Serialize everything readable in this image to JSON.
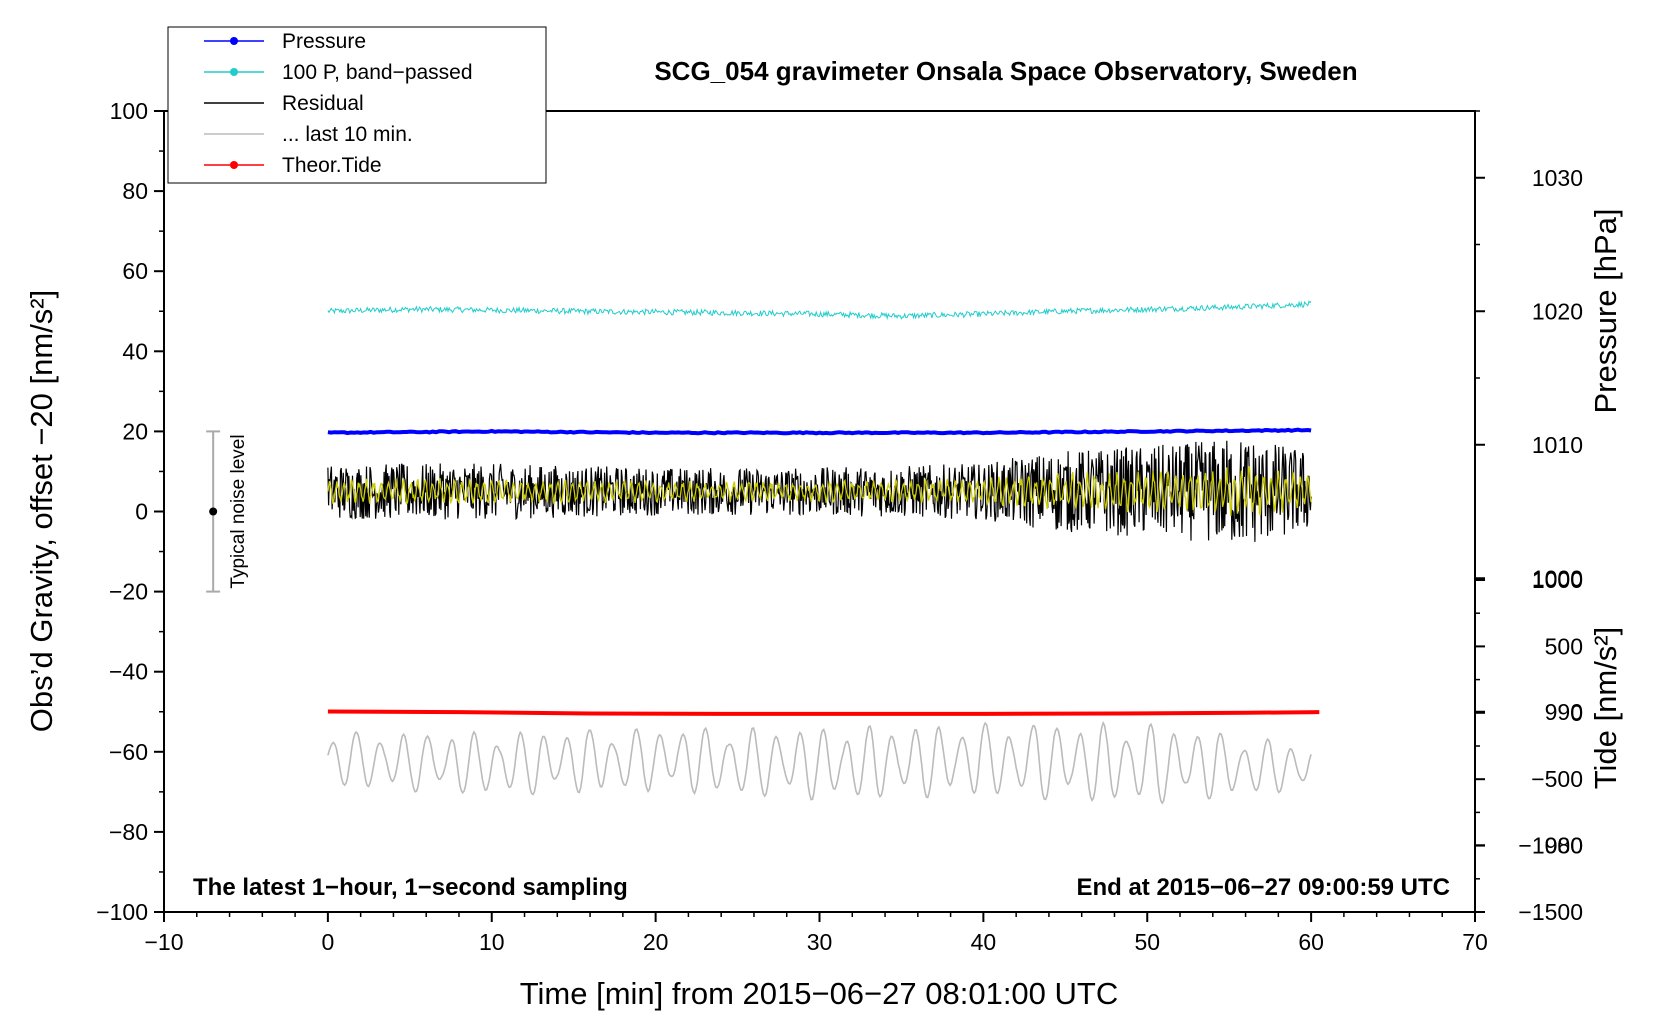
{
  "chart_data": {
    "type": "line",
    "title": "SCG_054 gravimeter Onsala Space Observatory, Sweden",
    "xlabel": "Time [min] from 2015−06−27 08:01:00 UTC",
    "ylabel_left": "Obs’d Gravity, offset −20 [nm/s²]",
    "ylabel_right_top": "Pressure [hPa]",
    "ylabel_right_bottom": "Tide [nm/s²]",
    "xlim": [
      -10,
      70
    ],
    "ylim_left": [
      -100,
      100
    ],
    "ylim_pressure": [
      975,
      1035
    ],
    "ylim_tide": [
      -1500,
      1000
    ],
    "xticks": [
      "−10",
      "0",
      "10",
      "20",
      "30",
      "40",
      "50",
      "60",
      "70"
    ],
    "yticks_left": [
      "100",
      "80",
      "60",
      "40",
      "20",
      "0",
      "−20",
      "−40",
      "−60",
      "−80",
      "−100"
    ],
    "yticks_pressure": [
      "1030",
      "1020",
      "1010",
      "1000",
      "990",
      "980"
    ],
    "yticks_tide": [
      "1000",
      "500",
      "0",
      "−500",
      "−1000",
      "−1500"
    ],
    "legend_position": "top-left",
    "legend": [
      {
        "name": "Pressure",
        "color": "#0000ff",
        "marker": true
      },
      {
        "name": "100 P, band−passed",
        "color": "#22cccc",
        "marker": true
      },
      {
        "name": "Residual",
        "color": "#000000",
        "marker": false
      },
      {
        "name": "... last 10 min.",
        "color": "#bbbbbb",
        "marker": false
      },
      {
        "name": "Theor.Tide",
        "color": "#ff0000",
        "marker": true
      }
    ],
    "series": [
      {
        "name": "Pressure",
        "axis": "pressure",
        "color": "#0000ff",
        "x": [
          0,
          10,
          20,
          30,
          40,
          50,
          60
        ],
        "y": [
          1010.9,
          1011.0,
          1010.9,
          1010.9,
          1010.9,
          1011.0,
          1011.1
        ]
      },
      {
        "name": "100 P, band−passed",
        "axis": "left",
        "color": "#22cccc",
        "x": [
          0,
          5,
          10,
          15,
          20,
          25,
          30,
          35,
          40,
          45,
          50,
          55,
          60
        ],
        "y": [
          50,
          50.5,
          50.3,
          50,
          49.8,
          49.6,
          49.3,
          48.8,
          49.3,
          50,
          50.5,
          51,
          51.8
        ]
      },
      {
        "name": "Residual",
        "axis": "left",
        "color": "#000000",
        "x": [
          0,
          10,
          20,
          30,
          40,
          44,
          48,
          52,
          56,
          60
        ],
        "y": [
          5,
          5,
          5,
          5,
          5,
          5,
          5,
          5,
          5,
          5
        ],
        "amplitude": [
          7,
          7,
          6,
          6,
          7,
          10,
          11,
          12,
          14,
          10
        ]
      },
      {
        "name": "... last 10 min.",
        "axis": "left",
        "color": "#bbbbbb",
        "x": [
          0,
          10,
          20,
          30,
          40,
          50,
          60
        ],
        "y": [
          -62,
          -63,
          -62,
          -63,
          -62,
          -63,
          -64
        ],
        "amplitude": [
          6,
          7,
          7,
          8,
          8,
          9,
          5
        ]
      },
      {
        "name": "Theor.Tide",
        "axis": "tide",
        "color": "#ff0000",
        "x": [
          0,
          8,
          16,
          24,
          32,
          40,
          48,
          56,
          60.5
        ],
        "y": [
          10,
          5,
          -5,
          -8,
          -8,
          -8,
          -5,
          0,
          5
        ]
      }
    ],
    "band_passed_residual": {
      "color": "#cccc00",
      "y": 5
    },
    "noise_bar": {
      "x": -7,
      "center": 0,
      "low": -20,
      "high": 20,
      "label": "Typical noise level"
    },
    "annotations": {
      "bottom_left": "The latest 1−hour, 1−second sampling",
      "bottom_right": "End at 2015−06−27 09:00:59 UTC"
    }
  }
}
